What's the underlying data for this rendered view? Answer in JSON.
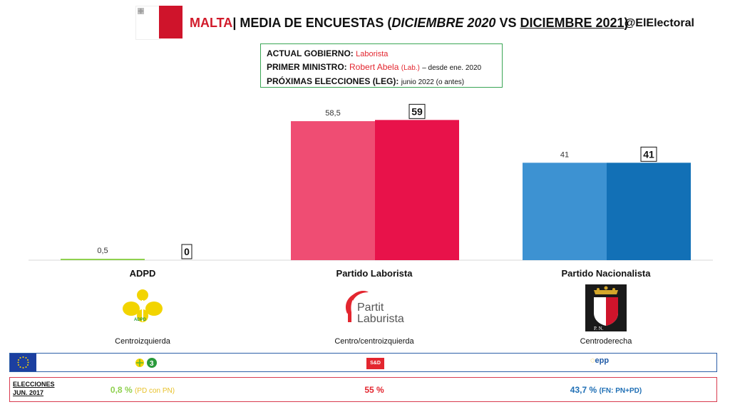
{
  "header": {
    "country": "MALTA",
    "title_sep": "| MEDIA DE ENCUESTAS (",
    "date_a": "DICIEMBRE 2020",
    "vs": " VS ",
    "date_b": "DICIEMBRE 2021",
    "close": ")",
    "handle": "@ElElectoral"
  },
  "info": {
    "gov_label": "ACTUAL GOBIERNO:",
    "gov_value": "Laborista",
    "pm_label": "PRIMER MINISTRO:",
    "pm_value": "Robert Abela",
    "pm_party": "(Lab.)",
    "pm_since": "– desde ene. 2020",
    "next_label": "PRÓXIMAS ELECCIONES (LEG):",
    "next_value": "junio 2022 (o antes)"
  },
  "chart_data": {
    "type": "bar",
    "categories": [
      "ADPD",
      "Partido Laborista",
      "Partido Nacionalista"
    ],
    "series": [
      {
        "values": [
          0.5,
          58.5,
          41
        ],
        "labels": [
          "0,5",
          "58,5",
          "41"
        ]
      },
      {
        "values": [
          0,
          59,
          41
        ],
        "labels": [
          "0",
          "59",
          "41"
        ]
      }
    ],
    "colors": {
      "ADPD": [
        "#8fd14f",
        "#8fd14f"
      ],
      "Partido Laborista": [
        "#ef4d73",
        "#e8124a"
      ],
      "Partido Nacionalista": [
        "#3d92d2",
        "#1270b6"
      ]
    },
    "ylim": [
      0,
      60
    ]
  },
  "parties": [
    {
      "name": "ADPD",
      "ideology": "Centroizquierda",
      "logo_text": "ADPD"
    },
    {
      "name": "Partido Laborista",
      "ideology": "Centro/centroizquierda",
      "logo_line1": "Partit",
      "logo_line2": "Laburista"
    },
    {
      "name": "Partido Nacionalista",
      "ideology": "Centroderecha",
      "logo_text": "P. N."
    }
  ],
  "eu_groups": {
    "greens_num": "3",
    "sd": "S&D",
    "epp": "epp"
  },
  "elections": {
    "label_line1": "ELECCIONES",
    "label_line2": "JUN. 2017",
    "adpd_value": "0,8 %",
    "adpd_note": "(PD con PN)",
    "pl_value": "55 %",
    "pn_value": "43,7 %",
    "pn_note": "(FN: PN+PD)",
    "colors": {
      "adpd": "#8fd14f",
      "adpd_note": "#e8c12a",
      "pl": "#e3262f",
      "pn": "#1f6fb5"
    }
  }
}
